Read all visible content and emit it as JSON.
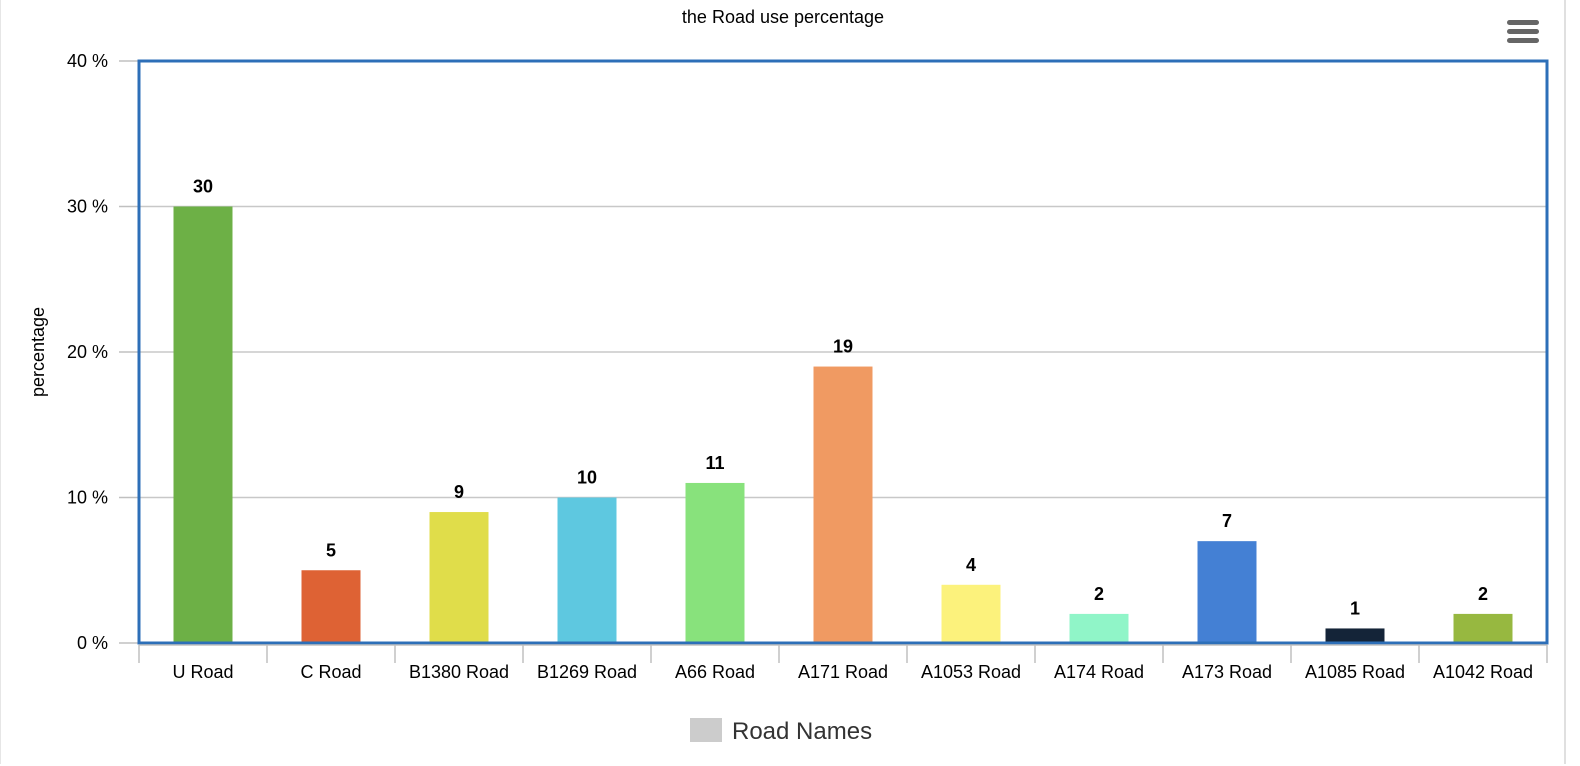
{
  "chart_data": {
    "type": "bar",
    "title": "the Road use percentage",
    "ylabel": "percentage",
    "xlabel": "",
    "ylim": [
      0,
      40
    ],
    "yticks": [
      0,
      10,
      20,
      30,
      40
    ],
    "ytick_labels": [
      "0 %",
      "10 %",
      "20 %",
      "30 %",
      "40 %"
    ],
    "grid": true,
    "legend_position": "bottom-center",
    "legend": [
      {
        "name": "Road Names",
        "color": "#cccccc"
      }
    ],
    "categories": [
      "U Road",
      "C Road",
      "B1380 Road",
      "B1269 Road",
      "A66 Road",
      "A171 Road",
      "A1053 Road",
      "A174 Road",
      "A173 Road",
      "A1085 Road",
      "A1042 Road"
    ],
    "values": [
      30,
      5,
      9,
      10,
      11,
      19,
      4,
      2,
      7,
      1,
      2
    ],
    "colors": [
      "#6db046",
      "#de6234",
      "#e0dd4a",
      "#5ec8e0",
      "#88e27c",
      "#f09a62",
      "#fcf27c",
      "#90f5c8",
      "#4480d4",
      "#142438",
      "#97b840"
    ],
    "plot_border_color": "#2d6fb8"
  },
  "menu": {
    "icon": "hamburger-menu-icon"
  }
}
